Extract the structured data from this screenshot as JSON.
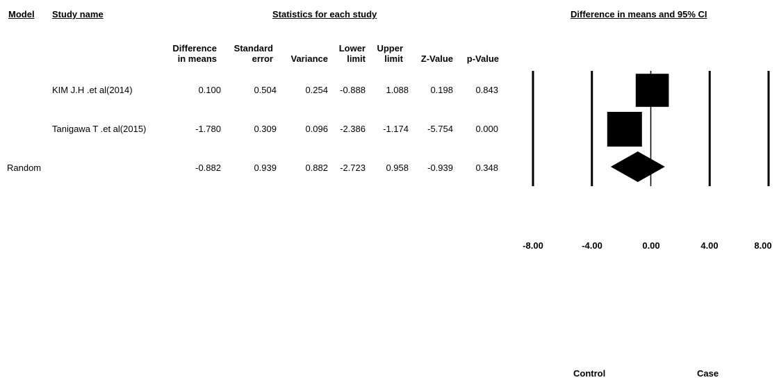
{
  "headers": {
    "model": "Model",
    "study_name": "Study name",
    "stats": "Statistics for each study",
    "plot": "Difference in means and 95% CI"
  },
  "columns": [
    {
      "line1": "Difference",
      "line2": "in means"
    },
    {
      "line1": "Standard",
      "line2": "error"
    },
    {
      "line1": "",
      "line2": "Variance"
    },
    {
      "line1": "Lower",
      "line2": "limit"
    },
    {
      "line1": "Upper",
      "line2": "limit"
    },
    {
      "line1": "",
      "line2": "Z-Value"
    },
    {
      "line1": "",
      "line2": "p-Value"
    }
  ],
  "rows": [
    {
      "model": "",
      "name": "KIM J.H .et al(2014)",
      "cells": [
        "0.100",
        "0.504",
        "0.254",
        "-0.888",
        "1.088",
        "0.198",
        "0.843"
      ]
    },
    {
      "model": "",
      "name": "Tanigawa T .et al(2015)",
      "cells": [
        "-1.780",
        "0.309",
        "0.096",
        "-2.386",
        "-1.174",
        "-5.754",
        "0.000"
      ]
    },
    {
      "model": "Random",
      "name": "",
      "cells": [
        "-0.882",
        "0.939",
        "0.882",
        "-2.723",
        "0.958",
        "-0.939",
        "0.348"
      ]
    }
  ],
  "axis": {
    "ticks": [
      "-8.00",
      "-4.00",
      "0.00",
      "4.00",
      "8.00"
    ]
  },
  "favours": {
    "left": "Control",
    "right": "Case"
  },
  "chart_data": {
    "type": "forest",
    "xlim": [
      -8,
      8
    ],
    "xticks": [
      -8,
      -4,
      0,
      4,
      8
    ],
    "studies": [
      {
        "name": "KIM J.H .et al(2014)",
        "estimate": 0.1,
        "lower": -0.888,
        "upper": 1.088,
        "se": 0.504
      },
      {
        "name": "Tanigawa T .et al(2015)",
        "estimate": -1.78,
        "lower": -2.386,
        "upper": -1.174,
        "se": 0.309
      }
    ],
    "summary": {
      "name": "Random",
      "estimate": -0.882,
      "lower": -2.723,
      "upper": 0.958
    }
  }
}
